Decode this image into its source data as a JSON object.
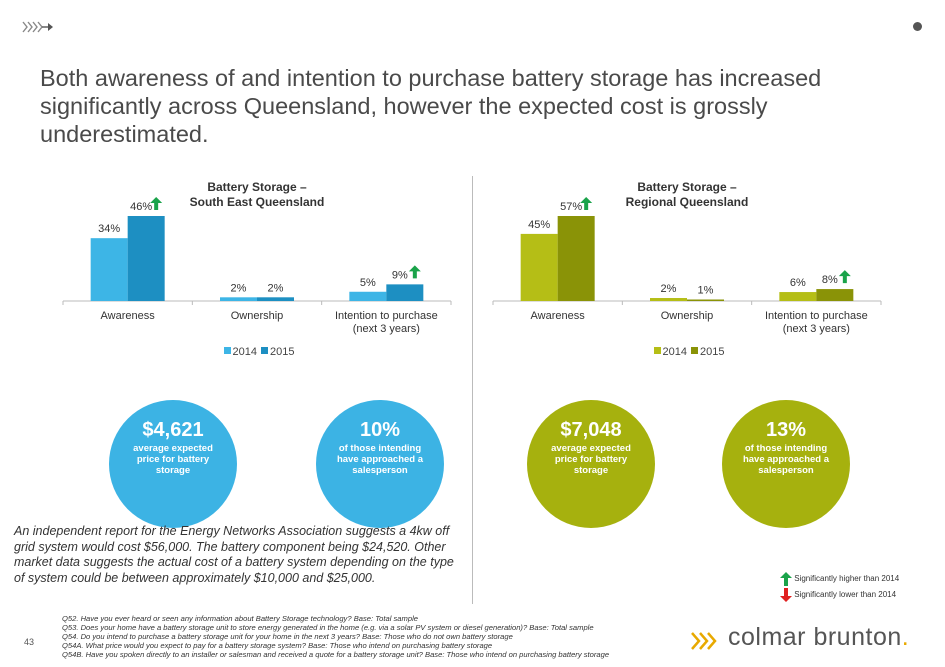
{
  "headline": "Both awareness of and intention to purchase battery storage has increased significantly across Queensland, however the expected cost is grossly underestimated.",
  "colors": {
    "seq_2014": "#3db5e6",
    "seq_2015": "#1d8fc2",
    "reg_2014": "#b5be16",
    "reg_2015": "#8a9307",
    "sig_up": "#1aa34a",
    "sig_down": "#e02020",
    "brand_accent": "#e8a900"
  },
  "chart_data": [
    {
      "type": "bar",
      "title_line1": "Battery Storage –",
      "title_line2": "South East Queensland",
      "categories": [
        "Awareness",
        "Ownership",
        "Intention to purchase"
      ],
      "category_sublabels": [
        "",
        "",
        "(next 3 years)"
      ],
      "series": [
        {
          "name": "2014",
          "values": [
            34,
            2,
            5
          ],
          "labels": [
            "34%",
            "2%",
            "5%"
          ]
        },
        {
          "name": "2015",
          "values": [
            46,
            2,
            9
          ],
          "labels": [
            "46%",
            "2%",
            "9%"
          ],
          "significant_up": [
            true,
            false,
            true
          ]
        }
      ],
      "ylim": [
        0,
        50
      ]
    },
    {
      "type": "bar",
      "title_line1": "Battery Storage –",
      "title_line2": "Regional Queensland",
      "categories": [
        "Awareness",
        "Ownership",
        "Intention to purchase"
      ],
      "category_sublabels": [
        "",
        "",
        "(next 3 years)"
      ],
      "series": [
        {
          "name": "2014",
          "values": [
            45,
            2,
            6
          ],
          "labels": [
            "45%",
            "2%",
            "6%"
          ]
        },
        {
          "name": "2015",
          "values": [
            57,
            1,
            8
          ],
          "labels": [
            "57%",
            "1%",
            "8%"
          ],
          "significant_up": [
            true,
            false,
            true
          ]
        }
      ],
      "ylim": [
        0,
        62
      ]
    }
  ],
  "callouts": {
    "seq_price": {
      "value": "$4,621",
      "text": "average expected price for battery storage"
    },
    "seq_sales": {
      "value": "10%",
      "text": "of those intending have approached a salesperson"
    },
    "reg_price": {
      "value": "$7,048",
      "text": "average expected price for battery storage"
    },
    "reg_sales": {
      "value": "13%",
      "text": "of those intending have approached a salesperson"
    }
  },
  "note": "An independent report for the Energy Networks Association suggests a 4kw off grid system would cost $56,000. The battery component being $24,520. Other market data suggests the actual cost of a battery system depending on the type of system could be between approximately $10,000 and $25,000.",
  "significance_legend": {
    "higher": "Significantly higher than 2014",
    "lower": "Significantly lower than 2014"
  },
  "footnotes": [
    "Q52. Have you ever heard or seen any information about Battery Storage technology?  Base: Total sample",
    "Q53. Does your home have a battery storage unit to store energy generated in the home (e.g. via a solar PV system or diesel generation)? Base: Total sample",
    "Q54. Do you intend to purchase a battery storage unit for your home in the next 3 years? Base: Those who do not own battery storage",
    "Q54A. What price would you expect to pay for a battery storage system? Base: Those who intend on purchasing battery storage",
    "Q54B. Have you spoken directly to an installer or salesman and received a quote for a battery storage unit? Base: Those who intend on purchasing battery storage"
  ],
  "page_number": "43",
  "brand": {
    "name": "colmar brunton",
    "dot": "."
  }
}
